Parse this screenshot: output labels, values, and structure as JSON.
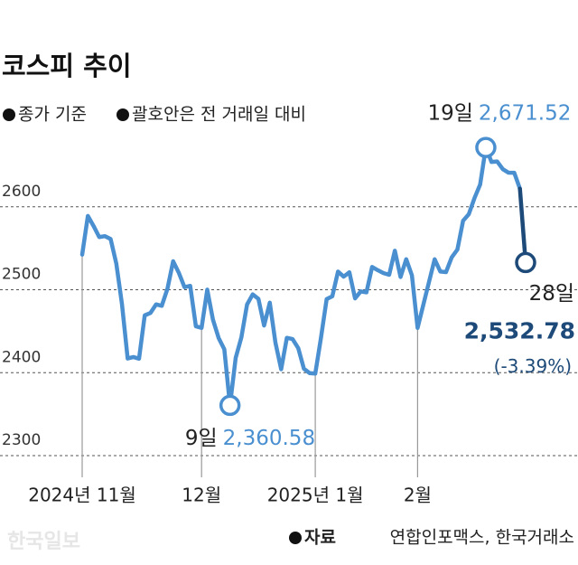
{
  "chart_data": {
    "type": "line",
    "title": "코스피 추이",
    "notes": [
      "종가 기준",
      "괄호안은 전 거래일 대비"
    ],
    "source_label": "자료",
    "source": "연합인포맥스, 한국거래소",
    "watermark": "한국일보",
    "categories": [
      "2024년 11월",
      null,
      null,
      null,
      null,
      null,
      null,
      null,
      null,
      null,
      null,
      null,
      null,
      null,
      null,
      null,
      null,
      null,
      null,
      null,
      null,
      "12월",
      null,
      null,
      null,
      null,
      null,
      null,
      null,
      null,
      null,
      null,
      null,
      null,
      null,
      null,
      null,
      null,
      null,
      null,
      null,
      "2025년 1월",
      null,
      null,
      null,
      null,
      null,
      null,
      null,
      null,
      null,
      null,
      null,
      null,
      null,
      null,
      null,
      null,
      null,
      "2월",
      null,
      null,
      null,
      null,
      null,
      null,
      null,
      null,
      null,
      null,
      null,
      null,
      null,
      null,
      null,
      null,
      null,
      null,
      null
    ],
    "series": [
      {
        "name": "코스피",
        "color": "#4a8fd0",
        "highlight_color": "#1d4a78",
        "values": [
          2542.36,
          2588.97,
          2576.88,
          2563.51,
          2564.63,
          2561.15,
          2531.66,
          2482.57,
          2417.08,
          2418.86,
          2416.86,
          2469.07,
          2471.95,
          2482.29,
          2480.63,
          2501.24,
          2534.34,
          2520.36,
          2503.06,
          2504.67,
          2455.91,
          2453.95,
          2500.1,
          2464.0,
          2441.85,
          2428.16,
          2360.58,
          2417.84,
          2442.51,
          2482.12,
          2494.46,
          2488.97,
          2456.81,
          2484.43,
          2435.93,
          2404.15,
          2442.01,
          2440.52,
          2429.67,
          2404.77,
          2399.49,
          2398.94,
          2441.92,
          2488.64,
          2492.1,
          2521.9,
          2515.78,
          2521.05,
          2489.56,
          2497.99,
          2496.85,
          2527.49,
          2523.55,
          2520.05,
          2518.03,
          2547.06,
          2515.38,
          2536.8,
          2517.37,
          2453.95,
          2481.69,
          2509.27,
          2536.75,
          2521.92,
          2521.27,
          2539.05,
          2548.39,
          2583.17,
          2591.05,
          2610.42,
          2626.81,
          2671.52,
          2654.06,
          2654.58,
          2645.27,
          2641.09,
          2641.03,
          2621.75,
          2532.78
        ],
        "point_labels": [
          null,
          null,
          null,
          null,
          null,
          null,
          null,
          null,
          null,
          null,
          null,
          null,
          null,
          null,
          null,
          null,
          null,
          null,
          null,
          null,
          null,
          null,
          null,
          null,
          null,
          null,
          "9일",
          null,
          null,
          null,
          null,
          null,
          null,
          null,
          null,
          null,
          null,
          null,
          null,
          null,
          null,
          null,
          null,
          null,
          null,
          null,
          null,
          null,
          null,
          null,
          null,
          null,
          null,
          null,
          null,
          null,
          null,
          null,
          null,
          null,
          null,
          null,
          null,
          null,
          null,
          null,
          null,
          null,
          null,
          null,
          null,
          "19일",
          null,
          null,
          null,
          null,
          null,
          null,
          "28일"
        ],
        "value_labels": [
          null,
          null,
          null,
          null,
          null,
          null,
          null,
          null,
          null,
          null,
          null,
          null,
          null,
          null,
          null,
          null,
          null,
          null,
          null,
          null,
          null,
          null,
          null,
          null,
          null,
          null,
          "2,360.58",
          null,
          null,
          null,
          null,
          null,
          null,
          null,
          null,
          null,
          null,
          null,
          null,
          null,
          null,
          null,
          null,
          null,
          null,
          null,
          null,
          null,
          null,
          null,
          null,
          null,
          null,
          null,
          null,
          null,
          null,
          null,
          null,
          null,
          null,
          null,
          null,
          null,
          null,
          null,
          null,
          null,
          null,
          null,
          null,
          "2,671.52",
          null,
          null,
          null,
          null,
          null,
          null,
          "2,532.78"
        ]
      }
    ],
    "change_label": "(-3.39%)",
    "ylim": [
      2300,
      2700
    ],
    "yticks": [
      2300,
      2400,
      2500,
      2600
    ],
    "grid": true
  }
}
